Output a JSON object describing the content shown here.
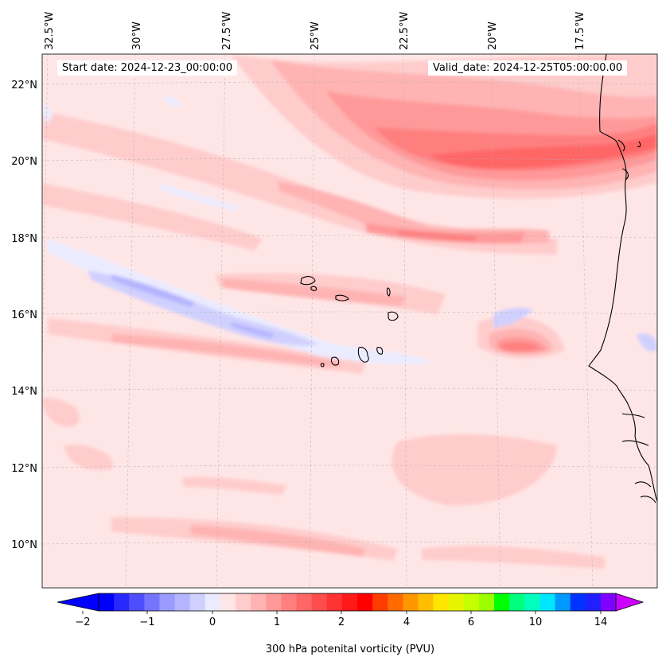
{
  "header": {
    "start_date": "Start date: 2024-12-23_00:00:00",
    "valid_date": "Valid_date: 2024-12-25T05:00:00.00"
  },
  "map": {
    "longitude_labels": [
      "32.5°W",
      "30°W",
      "27.5°W",
      "25°W",
      "22.5°W",
      "20°W",
      "17.5°W"
    ],
    "latitude_labels": [
      "22°N",
      "20°N",
      "18°N",
      "16°N",
      "14°N",
      "12°N",
      "10°N"
    ],
    "extent": {
      "lon": [
        -33.0,
        -15.0
      ],
      "lat": [
        8.9,
        22.8
      ]
    },
    "gridlines": true,
    "field": "300 hPa potential vorticity"
  },
  "colorbar": {
    "label": "300 hPa potenital vorticity (PVU)",
    "tick_labels": [
      "−2",
      "−1",
      "0",
      "1",
      "2",
      "4",
      "6",
      "10",
      "14"
    ],
    "colors": [
      "#0000ff",
      "#2828ff",
      "#4e4eff",
      "#7474ff",
      "#9a9aff",
      "#b4b4ff",
      "#d0d0ff",
      "#ebebff",
      "#ffe6e6",
      "#ffcccc",
      "#ffb3b3",
      "#ff9999",
      "#ff7f7f",
      "#ff6666",
      "#ff4d4d",
      "#ff3333",
      "#ff1919",
      "#ff0000",
      "#ff3d00",
      "#ff6a00",
      "#ff9600",
      "#ffbf00",
      "#ffe600",
      "#e6f500",
      "#c6ff00",
      "#9cff00",
      "#00ff00",
      "#00ff7f",
      "#00ffbf",
      "#00e6ff",
      "#0099ff",
      "#0033ff",
      "#2020ff",
      "#8000ff"
    ],
    "extend_low_color": "#0000ff",
    "extend_high_color": "#cc00ff"
  }
}
